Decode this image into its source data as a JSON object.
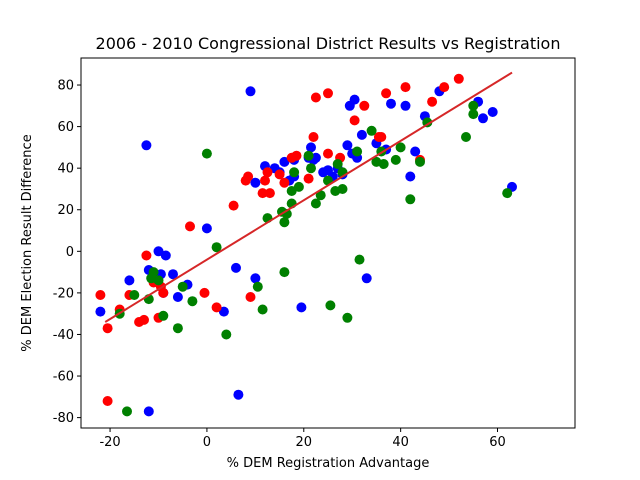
{
  "chart_data": {
    "type": "scatter",
    "title": "2006 - 2010 Congressional District Results vs Registration",
    "xlabel": "% DEM Registration Advantage",
    "ylabel": "% DEM Election Result Difference",
    "xlim": [
      -26,
      76
    ],
    "ylim": [
      -85,
      93
    ],
    "xticks": [
      -20,
      0,
      20,
      40,
      60
    ],
    "yticks": [
      -80,
      -60,
      -40,
      -20,
      0,
      20,
      40,
      60,
      80
    ],
    "grid": false,
    "colors": {
      "blue": "#0000ff",
      "red": "#ff0000",
      "green": "#008000",
      "fit": "#d62728"
    },
    "fit_line": {
      "x": [
        -21,
        63
      ],
      "y": [
        -34,
        86
      ]
    },
    "series": [
      {
        "color": "blue",
        "points": [
          [
            -22,
            -29
          ],
          [
            -16,
            -14
          ],
          [
            -12.5,
            51
          ],
          [
            -12,
            -9
          ],
          [
            -10,
            0
          ],
          [
            -9.5,
            -11
          ],
          [
            -9,
            -20
          ],
          [
            -8.5,
            -2
          ],
          [
            -7,
            -11
          ],
          [
            -6,
            -22
          ],
          [
            -4,
            -16
          ],
          [
            0,
            11
          ],
          [
            3.5,
            -29
          ],
          [
            6,
            -8
          ],
          [
            6.5,
            -69
          ],
          [
            9,
            77
          ],
          [
            10,
            33
          ],
          [
            10,
            -13
          ],
          [
            12,
            41
          ],
          [
            14,
            40
          ],
          [
            15,
            38
          ],
          [
            16,
            43
          ],
          [
            17,
            34
          ],
          [
            18,
            36
          ],
          [
            18,
            44
          ],
          [
            19.5,
            -27
          ],
          [
            21,
            45
          ],
          [
            21.5,
            50
          ],
          [
            22,
            44
          ],
          [
            22.5,
            45
          ],
          [
            24,
            38
          ],
          [
            25,
            39
          ],
          [
            26,
            36
          ],
          [
            27,
            40
          ],
          [
            28,
            37
          ],
          [
            29,
            51
          ],
          [
            29.5,
            70
          ],
          [
            30,
            47
          ],
          [
            30.5,
            73
          ],
          [
            31,
            45
          ],
          [
            32,
            56
          ],
          [
            33,
            -13
          ],
          [
            35,
            52
          ],
          [
            37,
            49
          ],
          [
            38,
            71
          ],
          [
            41,
            70
          ],
          [
            42,
            36
          ],
          [
            43,
            48
          ],
          [
            45,
            65
          ],
          [
            48,
            77
          ],
          [
            56,
            72
          ],
          [
            57,
            64
          ],
          [
            59,
            67
          ],
          [
            63,
            31
          ],
          [
            -12,
            -77
          ]
        ]
      },
      {
        "color": "red",
        "points": [
          [
            -22,
            -21
          ],
          [
            -20.5,
            -37
          ],
          [
            -20.5,
            -72
          ],
          [
            -18,
            -28
          ],
          [
            -16,
            -21
          ],
          [
            -14,
            -34
          ],
          [
            -13,
            -33
          ],
          [
            -12.5,
            -2
          ],
          [
            -11,
            -15
          ],
          [
            -10,
            -32
          ],
          [
            -9.5,
            -17
          ],
          [
            -9,
            -20
          ],
          [
            -3.5,
            12
          ],
          [
            -0.5,
            -20
          ],
          [
            2,
            -27
          ],
          [
            5.5,
            22
          ],
          [
            8,
            34
          ],
          [
            8.5,
            36
          ],
          [
            9,
            -22
          ],
          [
            11.5,
            28
          ],
          [
            12,
            34
          ],
          [
            12.5,
            38
          ],
          [
            13,
            28
          ],
          [
            15,
            37
          ],
          [
            16,
            33
          ],
          [
            17.5,
            45
          ],
          [
            18.5,
            46
          ],
          [
            21,
            35
          ],
          [
            22,
            55
          ],
          [
            22.5,
            74
          ],
          [
            25,
            76
          ],
          [
            25,
            47
          ],
          [
            27.5,
            45
          ],
          [
            30.5,
            63
          ],
          [
            32.5,
            70
          ],
          [
            35.5,
            55
          ],
          [
            36,
            55
          ],
          [
            37,
            76
          ],
          [
            41,
            79
          ],
          [
            44,
            44
          ],
          [
            46.5,
            72
          ],
          [
            49,
            79
          ],
          [
            52,
            83
          ]
        ]
      },
      {
        "color": "green",
        "points": [
          [
            -18,
            -30
          ],
          [
            -16.5,
            -77
          ],
          [
            -15,
            -21
          ],
          [
            -12,
            -23
          ],
          [
            -11.5,
            -13
          ],
          [
            -11,
            -10
          ],
          [
            -10,
            -14
          ],
          [
            -9,
            -31
          ],
          [
            -6,
            -37
          ],
          [
            -5,
            -17
          ],
          [
            -3,
            -24
          ],
          [
            0,
            47
          ],
          [
            2,
            2
          ],
          [
            4,
            -40
          ],
          [
            10.5,
            -17
          ],
          [
            11.5,
            -28
          ],
          [
            12.5,
            16
          ],
          [
            15.5,
            19
          ],
          [
            16,
            14
          ],
          [
            16,
            -10
          ],
          [
            16.5,
            18
          ],
          [
            17.5,
            23
          ],
          [
            17.5,
            29
          ],
          [
            18,
            38
          ],
          [
            19,
            31
          ],
          [
            21,
            46
          ],
          [
            21.5,
            40
          ],
          [
            22.5,
            23
          ],
          [
            23.5,
            27
          ],
          [
            25,
            34
          ],
          [
            25.5,
            -26
          ],
          [
            26.5,
            29
          ],
          [
            27,
            42
          ],
          [
            28,
            30
          ],
          [
            28,
            38
          ],
          [
            29,
            -32
          ],
          [
            31,
            48
          ],
          [
            31.5,
            -4
          ],
          [
            34,
            58
          ],
          [
            35,
            43
          ],
          [
            36,
            48
          ],
          [
            36.5,
            42
          ],
          [
            39,
            44
          ],
          [
            40,
            50
          ],
          [
            42,
            25
          ],
          [
            44,
            43
          ],
          [
            45.5,
            62
          ],
          [
            53.5,
            55
          ],
          [
            55,
            70
          ],
          [
            55,
            66
          ],
          [
            62,
            28
          ]
        ]
      }
    ]
  }
}
